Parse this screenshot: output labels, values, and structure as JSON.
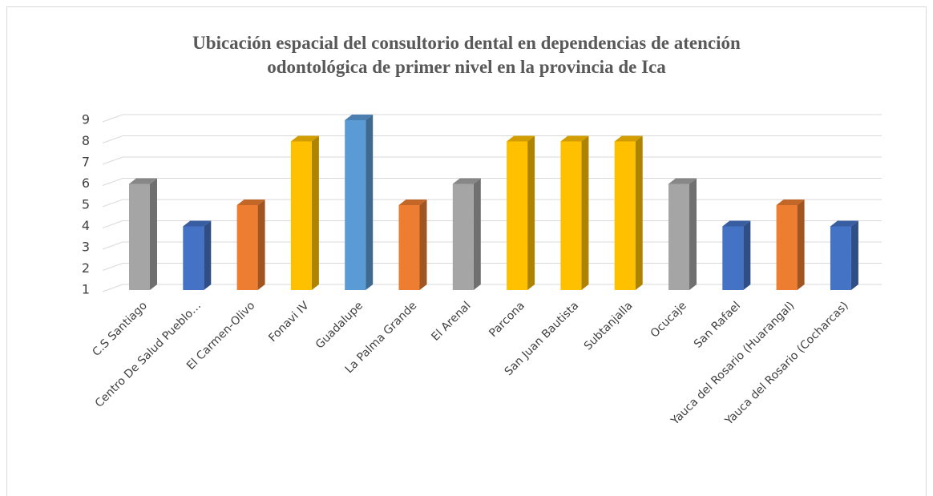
{
  "chart_data": {
    "type": "bar3d",
    "title": [
      "Ubicación espacial del consultorio dental en dependencias de atención",
      "odontológica de primer nivel en la provincia de Ica"
    ],
    "categories": [
      "C.S Santiago",
      "Centro De Salud Pueblo…",
      "El Carmen-Olivo",
      "Fonavi IV",
      "Guadalupe",
      "La Palma Grande",
      "El Arenal",
      "Parcona",
      "San Juan Bautista",
      "Subtanjalla",
      "Ocucaje",
      "San Rafael",
      "Yauca del Rosario (Huarangal)",
      "Yauca del Rosario (Cocharcas)"
    ],
    "values": [
      6,
      4,
      5,
      8,
      9,
      5,
      6,
      8,
      8,
      8,
      6,
      4,
      5,
      4
    ],
    "colors": [
      "#a5a5a5",
      "#4472c4",
      "#ed7d31",
      "#ffc000",
      "#5b9bd5",
      "#ed7d31",
      "#a5a5a5",
      "#ffc000",
      "#ffc000",
      "#ffc000",
      "#a5a5a5",
      "#4472c4",
      "#ed7d31",
      "#4472c4"
    ],
    "ylim": [
      1,
      9
    ],
    "yticks": [
      1,
      2,
      3,
      4,
      5,
      6,
      7,
      8,
      9
    ],
    "grid": true
  }
}
